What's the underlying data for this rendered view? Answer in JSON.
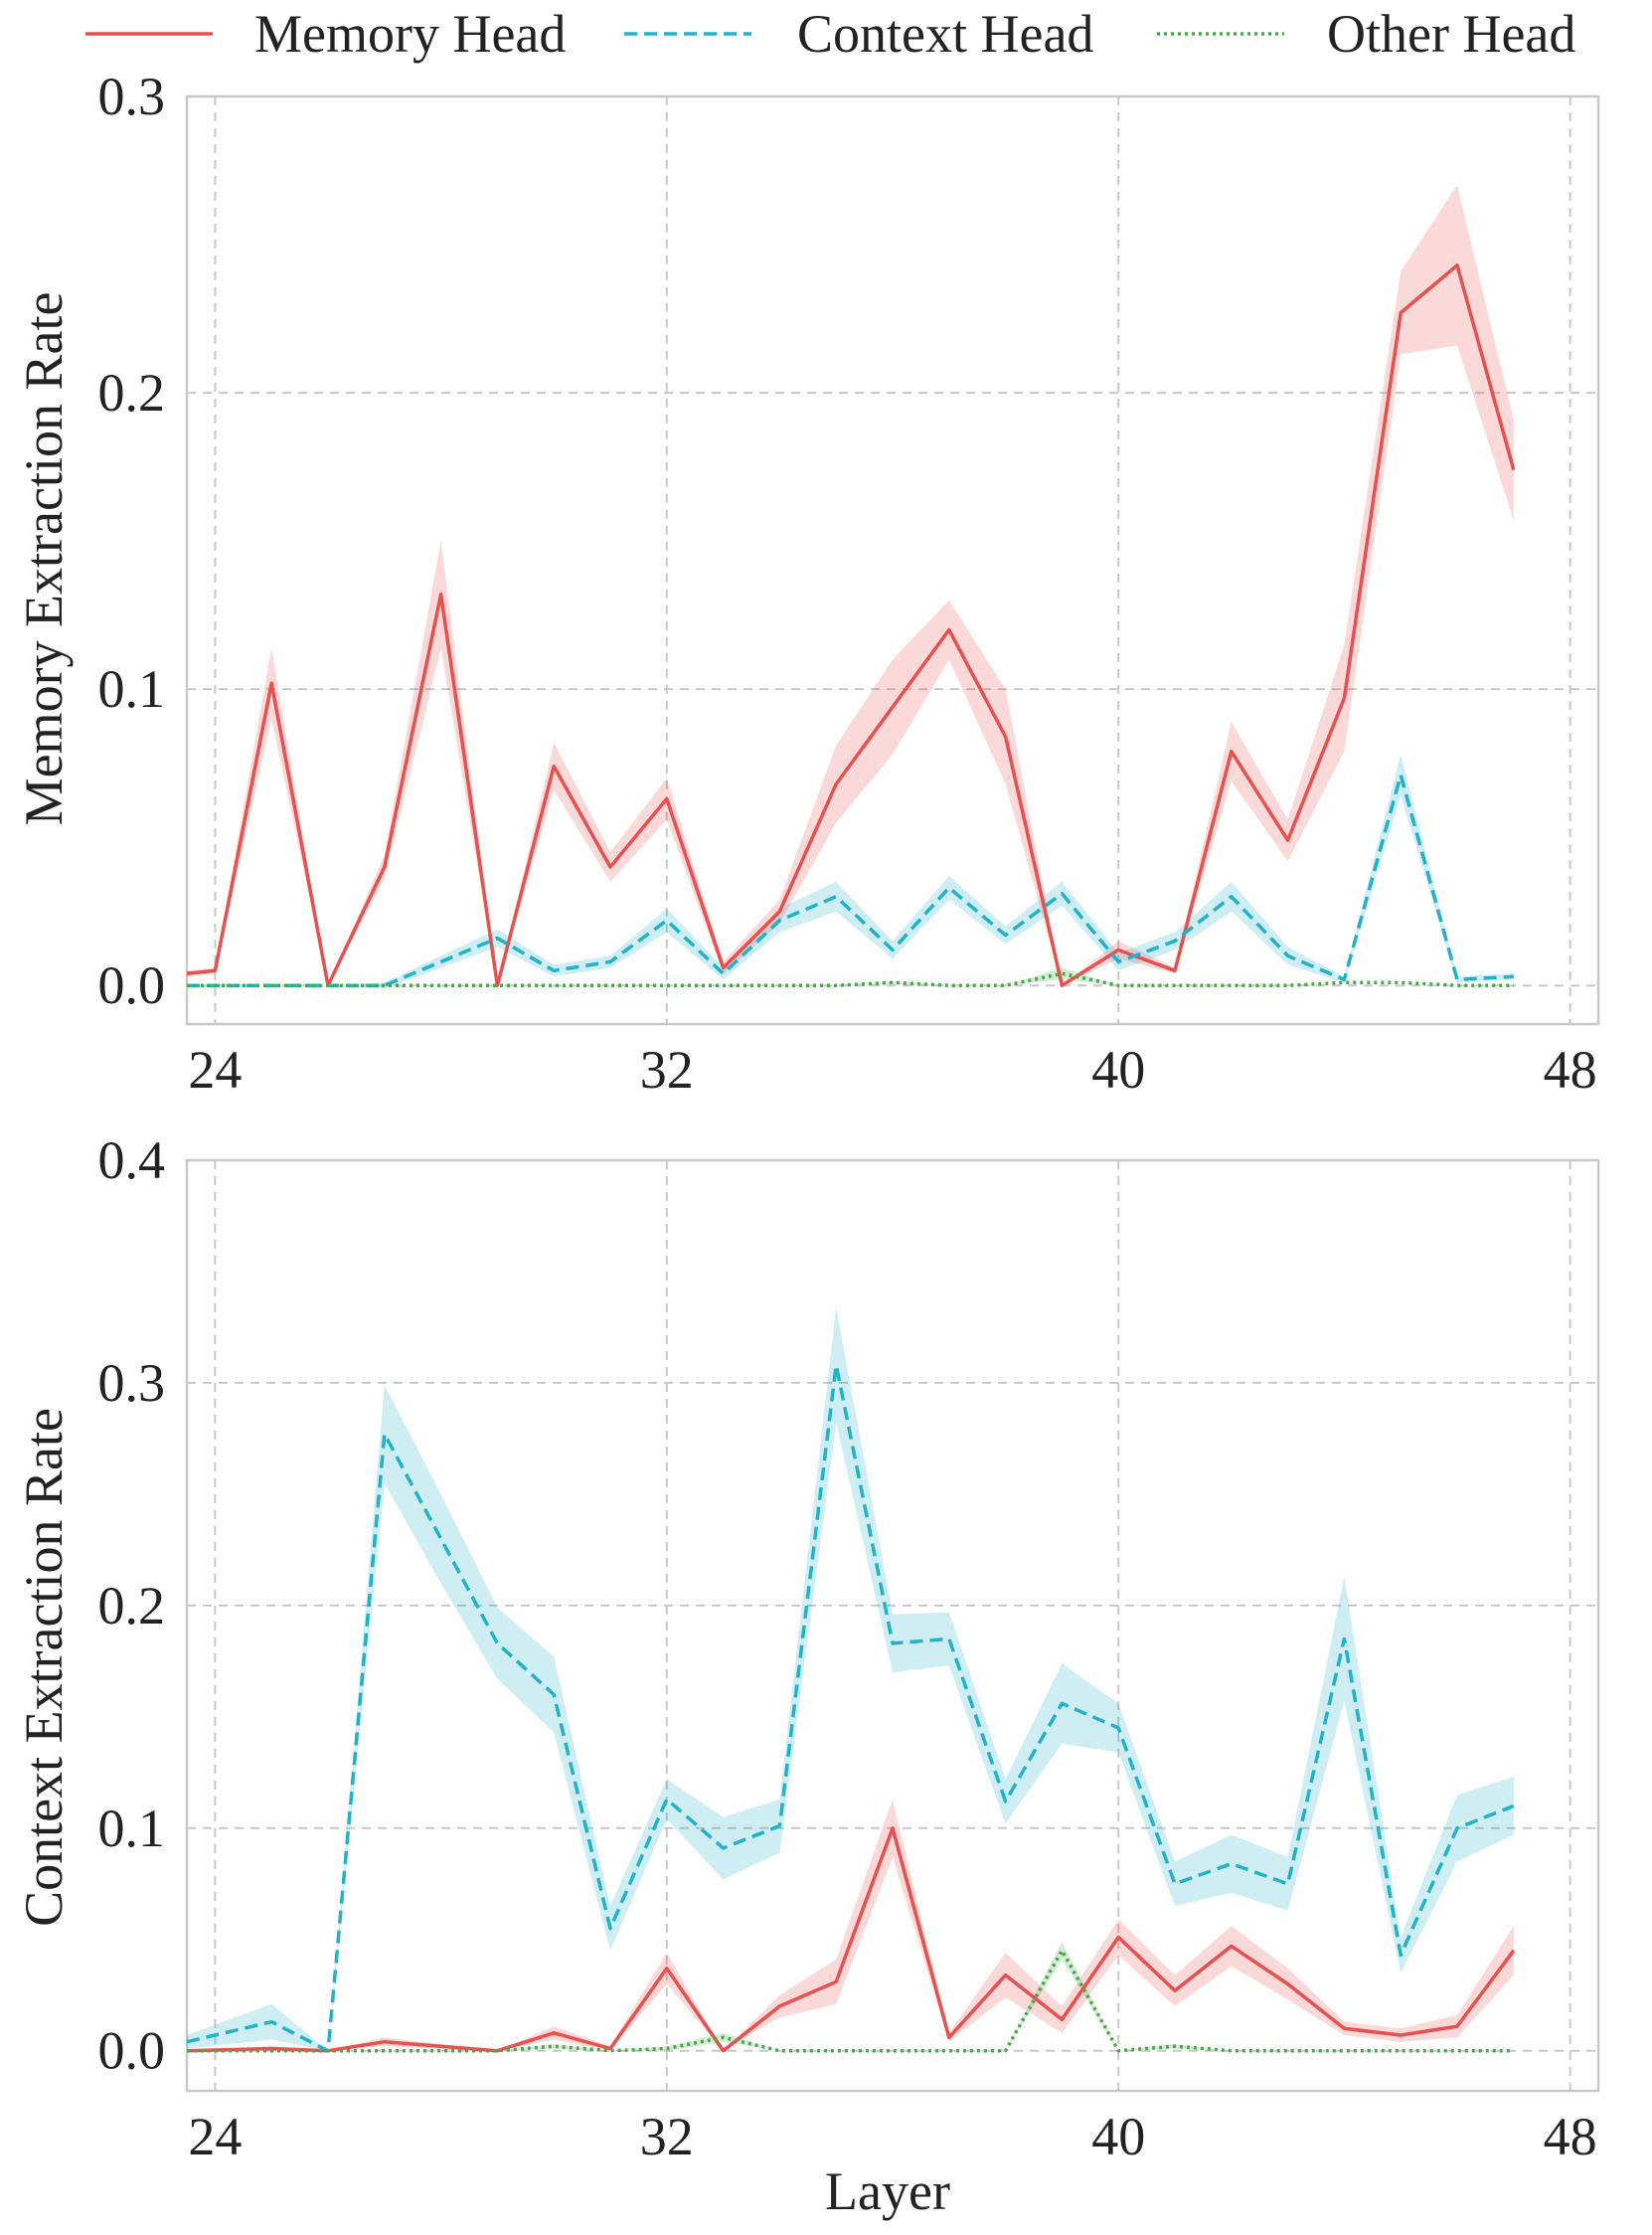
{
  "legend": {
    "entries": [
      {
        "label": "Memory Head",
        "color": "#e8504f",
        "dash": "solid"
      },
      {
        "label": "Context Head",
        "color": "#22b2c8",
        "dash": "dashed"
      },
      {
        "label": "Other Head",
        "color": "#4aa84a",
        "dash": "dotted"
      }
    ]
  },
  "xlabel": "Layer",
  "chart_data": [
    {
      "type": "line",
      "ylabel": "Memory Extraction Rate",
      "xlabel": "",
      "xlim": [
        23.5,
        48.5
      ],
      "ylim": [
        -0.013,
        0.3
      ],
      "xticks": [
        24,
        32,
        40,
        48
      ],
      "yticks": [
        0.0,
        0.1,
        0.2,
        0.3
      ],
      "ytick_labels": [
        "0.0",
        "0.1",
        "0.2",
        "0.3"
      ],
      "grid": true,
      "x": [
        23.5,
        24,
        25,
        26,
        27,
        28,
        29,
        30,
        31,
        32,
        33,
        34,
        35,
        36,
        37,
        38,
        39,
        40,
        41,
        42,
        43,
        44,
        45,
        46,
        47
      ],
      "series": [
        {
          "name": "Memory Head",
          "color": "#e8504f",
          "dash": "solid",
          "values": [
            0.004,
            0.005,
            0.102,
            0.0,
            0.04,
            0.132,
            0.0,
            0.074,
            0.04,
            0.063,
            0.006,
            0.025,
            0.068,
            0.094,
            0.12,
            0.084,
            0.0,
            0.012,
            0.005,
            0.079,
            0.049,
            0.097,
            0.227,
            0.243,
            0.174
          ],
          "ci": [
            0.001,
            0.001,
            0.012,
            0.0,
            0.004,
            0.018,
            0.0,
            0.008,
            0.005,
            0.007,
            0.002,
            0.004,
            0.013,
            0.016,
            0.01,
            0.016,
            0.0,
            0.003,
            0.001,
            0.01,
            0.007,
            0.018,
            0.014,
            0.027,
            0.017
          ]
        },
        {
          "name": "Context Head",
          "color": "#22b2c8",
          "dash": "dashed",
          "values": [
            0.0,
            0.0,
            0.0,
            0.0,
            0.0,
            0.008,
            0.016,
            0.005,
            0.008,
            0.022,
            0.004,
            0.022,
            0.03,
            0.012,
            0.033,
            0.017,
            0.031,
            0.008,
            0.015,
            0.03,
            0.01,
            0.002,
            0.071,
            0.002,
            0.003
          ],
          "ci": [
            0.0,
            0.0,
            0.0,
            0.0,
            0.001,
            0.002,
            0.003,
            0.002,
            0.002,
            0.004,
            0.002,
            0.004,
            0.005,
            0.003,
            0.004,
            0.003,
            0.004,
            0.003,
            0.003,
            0.005,
            0.003,
            0.001,
            0.007,
            0.001,
            0.001
          ]
        },
        {
          "name": "Other Head",
          "color": "#4aa84a",
          "dash": "dotted",
          "values": [
            0.0,
            0.0,
            0.0,
            0.0,
            0.0,
            0.0,
            0.0,
            0.0,
            0.0,
            0.0,
            0.0,
            0.0,
            0.0,
            0.001,
            0.0,
            0.0,
            0.004,
            0.0,
            0.0,
            0.0,
            0.0,
            0.001,
            0.001,
            0.0,
            0.0
          ],
          "ci": [
            0,
            0,
            0,
            0,
            0,
            0,
            0,
            0,
            0,
            0,
            0,
            0,
            0,
            0.0005,
            0,
            0,
            0.002,
            0,
            0,
            0,
            0,
            0,
            0,
            0,
            0
          ]
        }
      ]
    },
    {
      "type": "line",
      "ylabel": "Context Extraction Rate",
      "xlabel": "Layer",
      "xlim": [
        23.5,
        48.5
      ],
      "ylim": [
        -0.018,
        0.4
      ],
      "xticks": [
        24,
        32,
        40,
        48
      ],
      "yticks": [
        0.0,
        0.1,
        0.2,
        0.3,
        0.4
      ],
      "ytick_labels": [
        "0.0",
        "0.1",
        "0.2",
        "0.3",
        "0.4"
      ],
      "grid": true,
      "x": [
        23.5,
        25,
        26,
        27,
        28,
        29,
        30,
        31,
        32,
        33,
        34,
        35,
        36,
        37,
        38,
        39,
        40,
        41,
        42,
        43,
        44,
        45,
        46,
        47
      ],
      "series": [
        {
          "name": "Memory Head",
          "color": "#e8504f",
          "dash": "solid",
          "values": [
            0.0,
            0.001,
            0.0,
            0.004,
            0.002,
            0.0,
            0.008,
            0.001,
            0.037,
            0.0,
            0.02,
            0.031,
            0.1,
            0.006,
            0.034,
            0.014,
            0.051,
            0.027,
            0.047,
            0.03,
            0.01,
            0.007,
            0.011,
            0.045
          ],
          "ci": [
            0.0,
            0.001,
            0.0,
            0.002,
            0.001,
            0.0,
            0.003,
            0.001,
            0.007,
            0.0,
            0.005,
            0.01,
            0.013,
            0.002,
            0.01,
            0.006,
            0.008,
            0.007,
            0.009,
            0.007,
            0.003,
            0.003,
            0.005,
            0.011
          ]
        },
        {
          "name": "Context Head",
          "color": "#22b2c8",
          "dash": "dashed",
          "values": [
            0.004,
            0.013,
            0.0,
            0.277,
            0.23,
            0.183,
            0.16,
            0.055,
            0.113,
            0.091,
            0.101,
            0.308,
            0.183,
            0.185,
            0.112,
            0.156,
            0.145,
            0.075,
            0.084,
            0.075,
            0.185,
            0.043,
            0.1,
            0.11
          ],
          "ci": [
            0.003,
            0.008,
            0.0,
            0.022,
            0.02,
            0.016,
            0.017,
            0.01,
            0.009,
            0.014,
            0.012,
            0.026,
            0.013,
            0.012,
            0.01,
            0.018,
            0.011,
            0.01,
            0.013,
            0.012,
            0.028,
            0.008,
            0.015,
            0.013
          ]
        },
        {
          "name": "Other Head",
          "color": "#4aa84a",
          "dash": "dotted",
          "values": [
            0.0,
            0.0,
            0.0,
            0.0,
            0.0,
            0.0,
            0.002,
            0.0,
            0.001,
            0.006,
            0.0,
            0.0,
            0.0,
            0.0,
            0.0,
            0.045,
            0.0,
            0.002,
            0.0,
            0.0,
            0.0,
            0.0,
            0.0,
            0.0
          ],
          "ci": [
            0,
            0,
            0,
            0,
            0,
            0,
            0.001,
            0,
            0.001,
            0.002,
            0,
            0,
            0,
            0,
            0,
            0.004,
            0,
            0.001,
            0,
            0,
            0,
            0,
            0,
            0
          ]
        }
      ]
    }
  ]
}
